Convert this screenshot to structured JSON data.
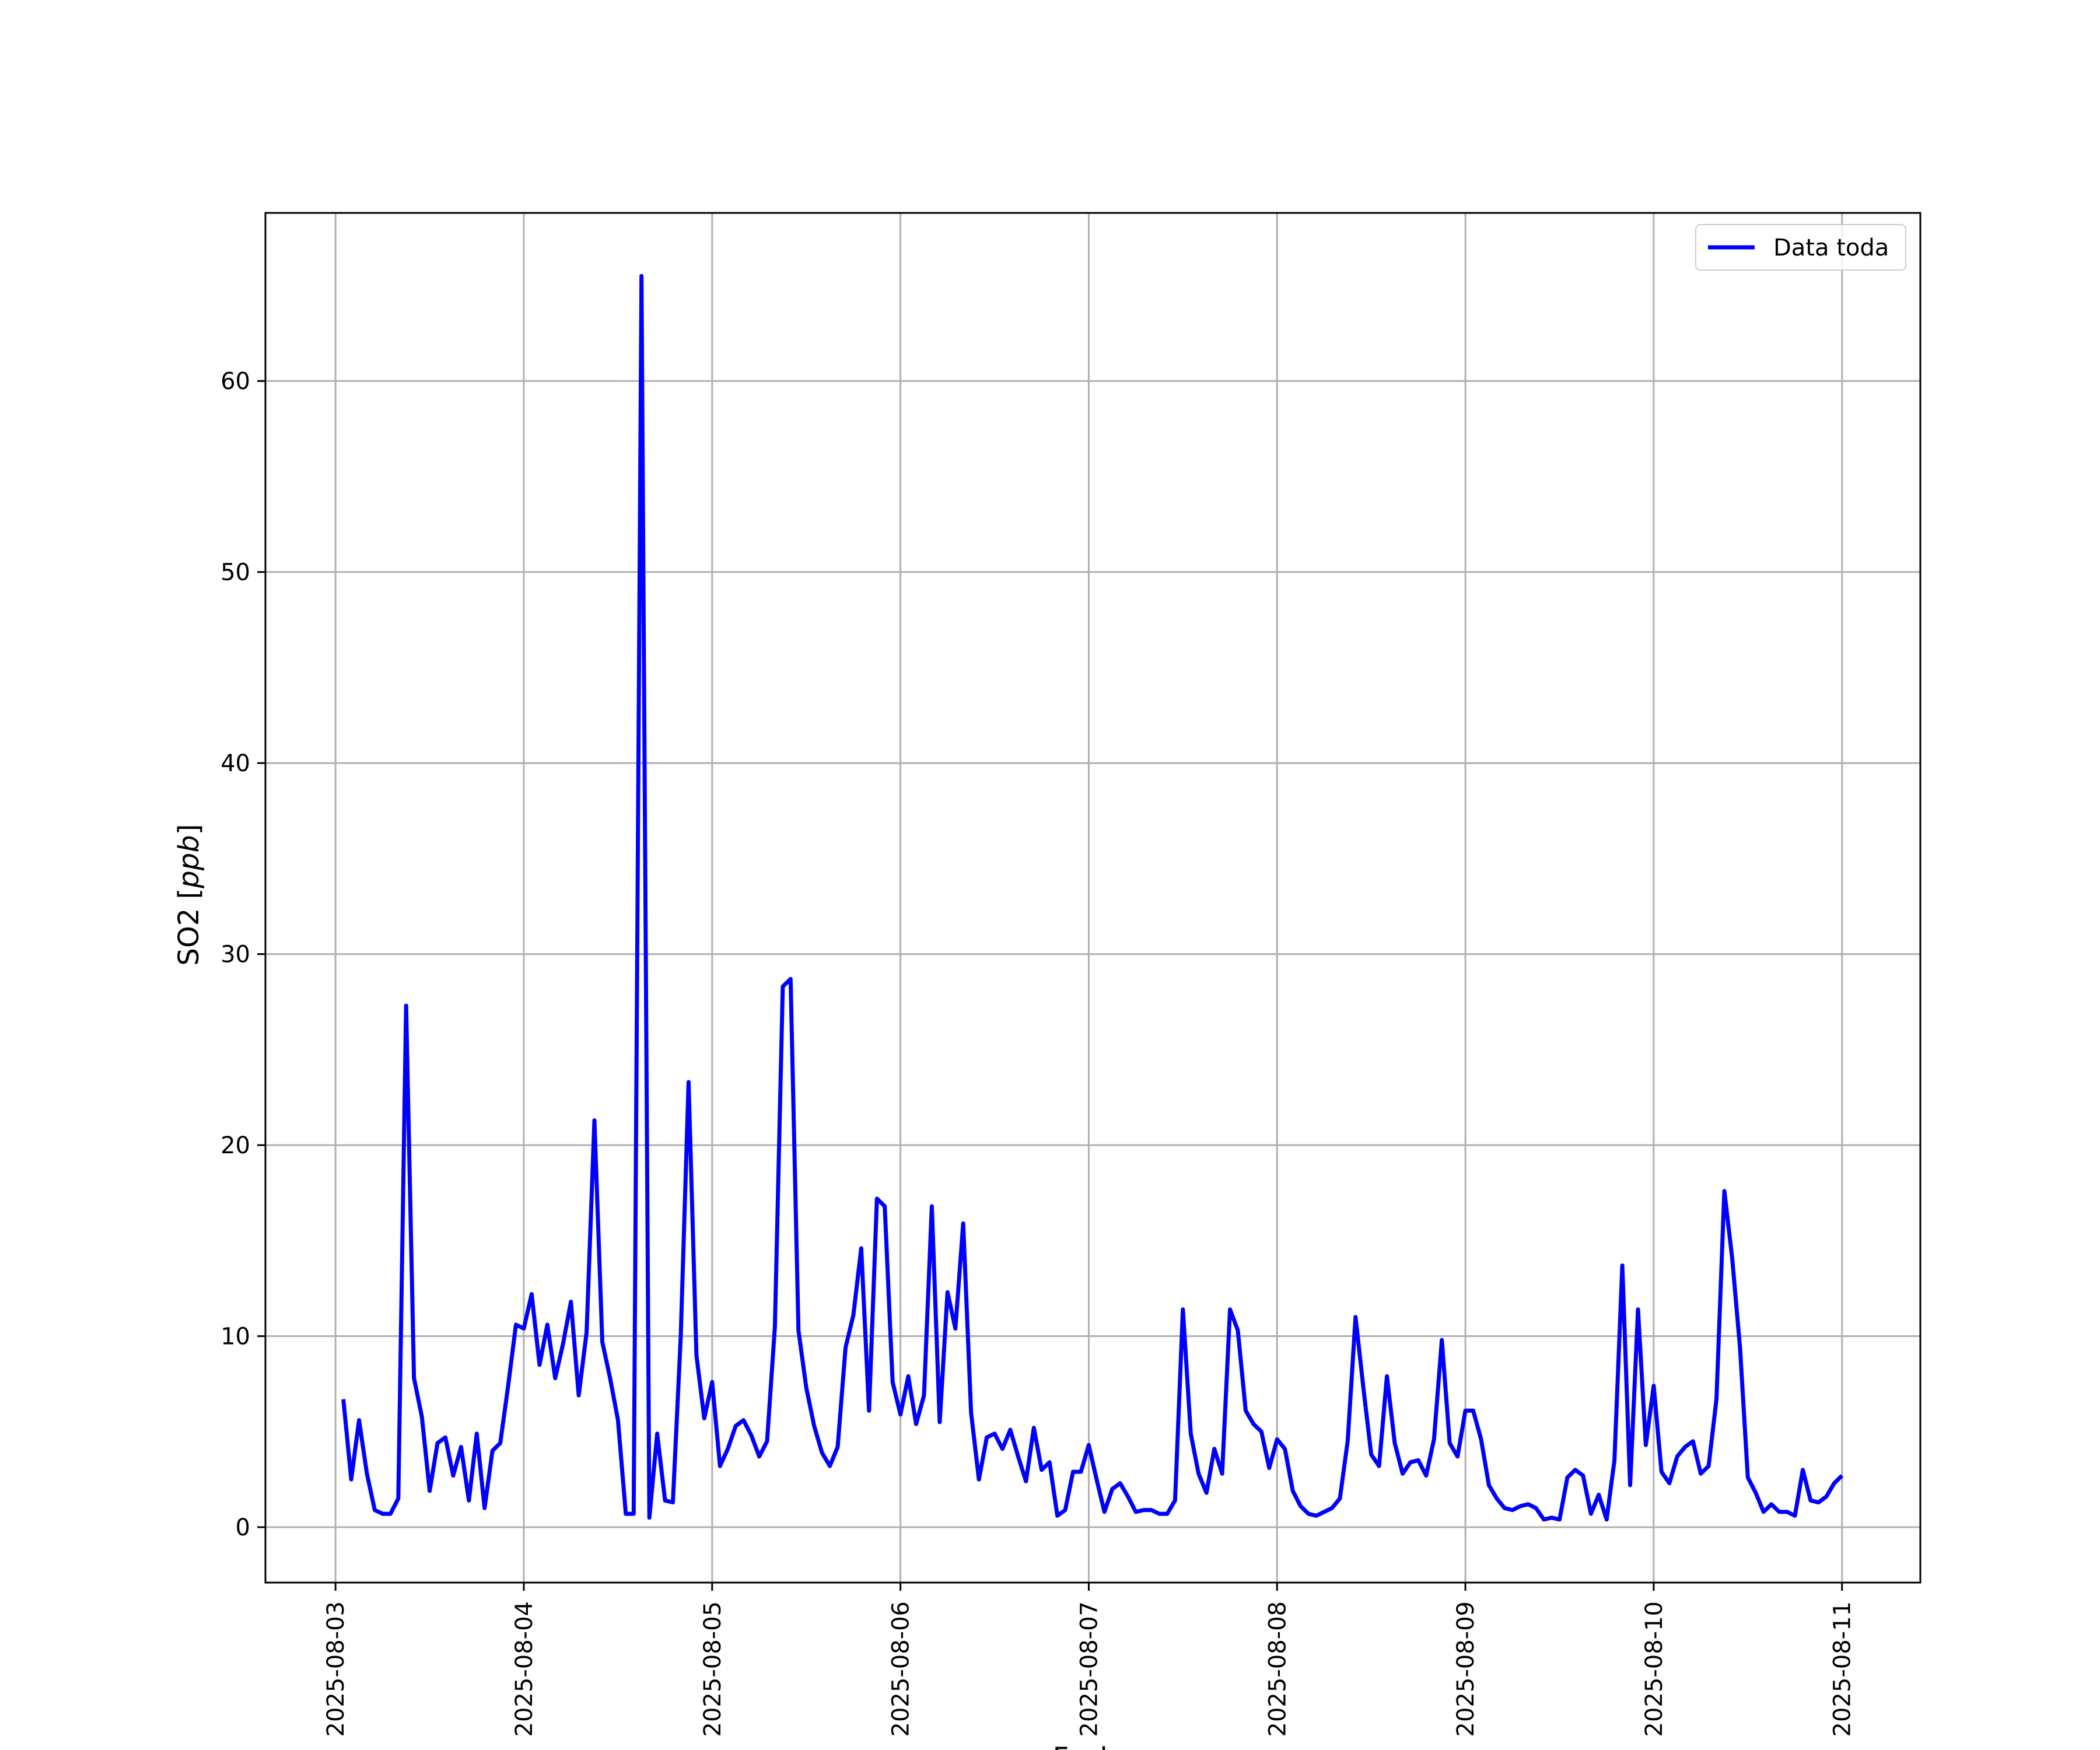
{
  "chart_data": {
    "type": "line",
    "title": "",
    "xlabel": "Fecha",
    "ylabel": "SO2 [",
    "ylabel_unit": "ppb",
    "ylabel_close": "]",
    "x_tick_labels": [
      "2025-08-03",
      "2025-08-04",
      "2025-08-05",
      "2025-08-06",
      "2025-08-07",
      "2025-08-08",
      "2025-08-09",
      "2025-08-10",
      "2025-08-11"
    ],
    "y_ticks": [
      0,
      10,
      20,
      30,
      40,
      50,
      60
    ],
    "xlim": [
      "2025-08-02 15:04",
      "2025-08-11 09:59"
    ],
    "ylim": [
      -2.9,
      68.8
    ],
    "grid": true,
    "legend_position": "upper right",
    "colors": {
      "series": "#0000ff",
      "grid": "#b0b0b0",
      "axes": "#000000"
    },
    "series": [
      {
        "name": "Data toda",
        "x_start": "2025-08-03 01:00",
        "x_step_hours": 1,
        "values": [
          6.7,
          2.5,
          5.6,
          2.8,
          0.9,
          0.7,
          0.7,
          1.5,
          27.3,
          7.8,
          5.8,
          1.9,
          4.4,
          4.7,
          2.7,
          4.2,
          1.4,
          4.9,
          1.0,
          4.0,
          4.4,
          7.4,
          10.6,
          10.4,
          12.2,
          8.5,
          10.6,
          7.8,
          9.6,
          11.8,
          6.9,
          10.2,
          21.3,
          9.7,
          7.8,
          5.6,
          0.7,
          0.7,
          65.5,
          0.5,
          4.9,
          1.4,
          1.3,
          10.0,
          23.3,
          9.0,
          5.7,
          7.6,
          3.2,
          4.1,
          5.3,
          5.6,
          4.8,
          3.7,
          4.5,
          10.5,
          28.3,
          28.7,
          10.3,
          7.3,
          5.3,
          3.9,
          3.2,
          4.2,
          9.4,
          11.1,
          14.6,
          6.1,
          17.2,
          16.8,
          7.6,
          5.9,
          7.9,
          5.4,
          6.9,
          16.8,
          5.5,
          12.3,
          10.4,
          15.9,
          6.0,
          2.5,
          4.7,
          4.9,
          4.1,
          5.1,
          3.7,
          2.4,
          5.2,
          3.0,
          3.4,
          0.6,
          0.9,
          2.9,
          2.9,
          4.3,
          2.5,
          0.8,
          2.0,
          2.3,
          1.6,
          0.8,
          0.9,
          0.9,
          0.7,
          0.7,
          1.4,
          11.4,
          4.9,
          2.8,
          1.8,
          4.1,
          2.8,
          11.4,
          10.3,
          6.1,
          5.4,
          5.0,
          3.1,
          4.6,
          4.1,
          1.9,
          1.1,
          0.7,
          0.6,
          0.8,
          1.0,
          1.5,
          4.5,
          11.0,
          7.3,
          3.8,
          3.2,
          7.9,
          4.4,
          2.8,
          3.4,
          3.5,
          2.7,
          4.6,
          9.8,
          4.4,
          3.7,
          6.1,
          6.1,
          4.6,
          2.2,
          1.5,
          1.0,
          0.9,
          1.1,
          1.2,
          1.0,
          0.4,
          0.5,
          0.4,
          2.6,
          3.0,
          2.7,
          0.7,
          1.7,
          0.4,
          3.5,
          13.7,
          2.2,
          11.4,
          4.3,
          7.4,
          2.9,
          2.3,
          3.7,
          4.2,
          4.5,
          2.8,
          3.2,
          6.7,
          17.6,
          14.1,
          9.4,
          2.6,
          1.8,
          0.8,
          1.2,
          0.8,
          0.8,
          0.6,
          3.0,
          1.4,
          1.3,
          1.6,
          2.3,
          2.7
        ]
      }
    ]
  }
}
